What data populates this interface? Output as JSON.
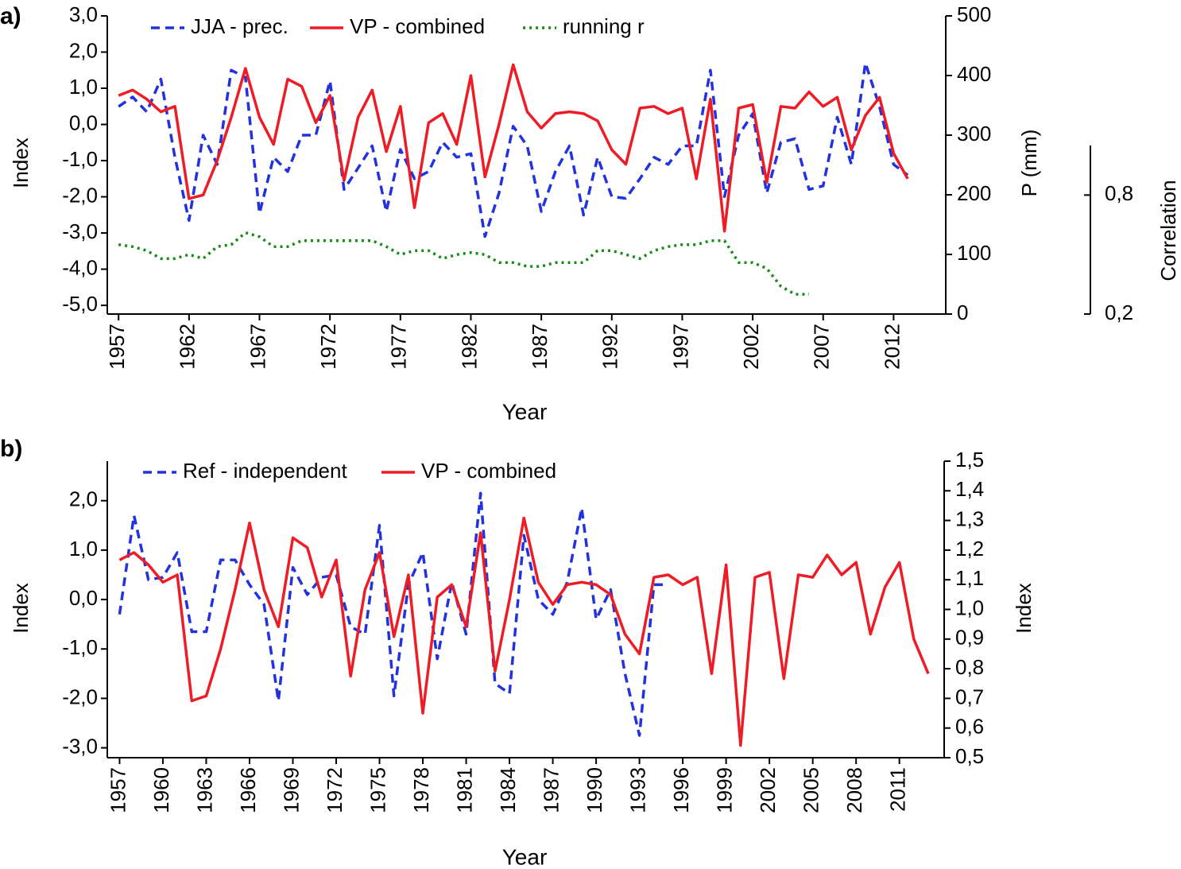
{
  "chart_data": [
    {
      "type": "line",
      "label": "a)",
      "x_label": "Year",
      "y_label": "Index",
      "y2_label": "P (mm)",
      "y3_label": "Correlation",
      "x": [
        1957,
        1958,
        1959,
        1960,
        1961,
        1962,
        1963,
        1964,
        1965,
        1966,
        1967,
        1968,
        1969,
        1970,
        1971,
        1972,
        1973,
        1974,
        1975,
        1976,
        1977,
        1978,
        1979,
        1980,
        1981,
        1982,
        1983,
        1984,
        1985,
        1986,
        1987,
        1988,
        1989,
        1990,
        1991,
        1992,
        1993,
        1994,
        1995,
        1996,
        1997,
        1998,
        1999,
        2000,
        2001,
        2002,
        2003,
        2004,
        2005,
        2006,
        2007,
        2008,
        2009,
        2010,
        2011,
        2012,
        2013
      ],
      "xlim": [
        1956.2,
        2015.7
      ],
      "xticks": [
        1957,
        1962,
        1967,
        1972,
        1977,
        1982,
        1987,
        1992,
        1997,
        2002,
        2007,
        2012
      ],
      "ylim": [
        -5.24,
        3.0
      ],
      "yticks": [
        {
          "value": 3,
          "label": "3,0"
        },
        {
          "value": 2,
          "label": "2,0"
        },
        {
          "value": 1,
          "label": "1,0"
        },
        {
          "value": 0,
          "label": "0,0"
        },
        {
          "value": -1,
          "label": "-1,0"
        },
        {
          "value": -2,
          "label": "-2,0"
        },
        {
          "value": -3,
          "label": "-3,0"
        },
        {
          "value": -4,
          "label": "-4,0"
        },
        {
          "value": -5,
          "label": "-5,0"
        }
      ],
      "y2lim": [
        0,
        500
      ],
      "y2ticks": [
        0,
        100,
        200,
        300,
        400,
        500
      ],
      "y3lim": [
        0.2,
        1.05
      ],
      "y3ticks": [
        {
          "value": 0.8,
          "label": "0,8"
        },
        {
          "value": 0.2,
          "label": "0,2"
        }
      ],
      "series": [
        {
          "name": "JJA - prec.",
          "color": "#2233dd",
          "dash": "dashed",
          "axis": "y2",
          "values": [
            348,
            364,
            339,
            394,
            263,
            157,
            300,
            251,
            409,
            397,
            169,
            263,
            239,
            300,
            300,
            391,
            209,
            245,
            282,
            172,
            276,
            227,
            239,
            288,
            263,
            269,
            130,
            203,
            315,
            282,
            172,
            239,
            282,
            166,
            263,
            197,
            194,
            227,
            263,
            251,
            282,
            282,
            409,
            197,
            300,
            336,
            203,
            288,
            294,
            209,
            215,
            330,
            251,
            421,
            348,
            251,
            233
          ]
        },
        {
          "name": "VP - combined",
          "color": "#ee1c25",
          "dash": "solid",
          "axis": "y",
          "values": [
            0.8,
            0.95,
            0.7,
            0.35,
            0.5,
            -2.05,
            -1.95,
            -1.0,
            0.2,
            1.55,
            0.2,
            -0.55,
            1.25,
            1.05,
            0.05,
            0.8,
            -1.55,
            0.2,
            0.95,
            -0.75,
            0.5,
            -2.3,
            0.05,
            0.3,
            -0.55,
            1.35,
            -1.45,
            0.0,
            1.65,
            0.35,
            -0.1,
            0.3,
            0.35,
            0.3,
            0.1,
            -0.7,
            -1.1,
            0.45,
            0.5,
            0.3,
            0.45,
            -1.5,
            0.7,
            -2.95,
            0.45,
            0.55,
            -1.6,
            0.5,
            0.45,
            0.9,
            0.5,
            0.75,
            -0.7,
            0.25,
            0.75,
            -0.8,
            -1.5
          ]
        },
        {
          "name": "running r",
          "color": "#1a8a1a",
          "dash": "dotted",
          "axis": "y3",
          "values": [
            0.55,
            0.54,
            0.52,
            0.48,
            0.48,
            0.5,
            0.48,
            0.54,
            0.55,
            0.61,
            0.59,
            0.54,
            0.54,
            0.57,
            0.57,
            0.57,
            0.57,
            0.57,
            0.57,
            0.54,
            0.5,
            0.52,
            0.52,
            0.48,
            0.5,
            0.51,
            0.5,
            0.46,
            0.46,
            0.44,
            0.44,
            0.46,
            0.46,
            0.46,
            0.52,
            0.52,
            0.5,
            0.48,
            0.52,
            0.54,
            0.55,
            0.55,
            0.57,
            0.57,
            0.46,
            0.46,
            0.43,
            0.34,
            0.3,
            0.3,
            null,
            null,
            null,
            null,
            null,
            null,
            null
          ]
        }
      ]
    },
    {
      "type": "line",
      "label": "b)",
      "x_label": "Year",
      "y_label": "Index",
      "y2_label": "Index",
      "x": [
        1957,
        1958,
        1959,
        1960,
        1961,
        1962,
        1963,
        1964,
        1965,
        1966,
        1967,
        1968,
        1969,
        1970,
        1971,
        1972,
        1973,
        1974,
        1975,
        1976,
        1977,
        1978,
        1979,
        1980,
        1981,
        1982,
        1983,
        1984,
        1985,
        1986,
        1987,
        1988,
        1989,
        1990,
        1991,
        1992,
        1993,
        1994,
        1995,
        1996,
        1997,
        1998,
        1999,
        2000,
        2001,
        2002,
        2003,
        2004,
        2005,
        2006,
        2007,
        2008,
        2009,
        2010,
        2011,
        2012,
        2013
      ],
      "xlim": [
        1956.15,
        2014.1
      ],
      "xticks": [
        1957,
        1960,
        1963,
        1966,
        1969,
        1972,
        1975,
        1978,
        1981,
        1984,
        1987,
        1990,
        1993,
        1996,
        1999,
        2002,
        2005,
        2008,
        2011
      ],
      "ylim": [
        -3.2,
        2.8
      ],
      "yticks": [
        {
          "value": 2,
          "label": "2,0"
        },
        {
          "value": 1,
          "label": "1,0"
        },
        {
          "value": 0,
          "label": "0,0"
        },
        {
          "value": -1,
          "label": "-1,0"
        },
        {
          "value": -2,
          "label": "-2,0"
        },
        {
          "value": -3,
          "label": "-3,0"
        }
      ],
      "y2lim": [
        0.5,
        1.5
      ],
      "y2ticks": [
        {
          "value": 1.5,
          "label": "1,5"
        },
        {
          "value": 1.4,
          "label": "1,4"
        },
        {
          "value": 1.3,
          "label": "1,3"
        },
        {
          "value": 1.2,
          "label": "1,2"
        },
        {
          "value": 1.1,
          "label": "1,1"
        },
        {
          "value": 1.0,
          "label": "1,0"
        },
        {
          "value": 0.9,
          "label": "0,9"
        },
        {
          "value": 0.8,
          "label": "0,8"
        },
        {
          "value": 0.7,
          "label": "0,7"
        },
        {
          "value": 0.6,
          "label": "0,6"
        },
        {
          "value": 0.5,
          "label": "0,5"
        }
      ],
      "series": [
        {
          "name": "Ref - independent",
          "color": "#2233dd",
          "dash": "dashed",
          "axis": "y",
          "values": [
            -0.3,
            1.7,
            0.4,
            0.45,
            0.95,
            -0.65,
            -0.65,
            0.8,
            0.8,
            0.3,
            -0.1,
            -2.05,
            0.65,
            0.1,
            0.45,
            0.5,
            -0.55,
            -0.7,
            1.5,
            -1.95,
            0.3,
            0.95,
            -1.2,
            0.35,
            -0.7,
            2.15,
            -1.7,
            -1.9,
            1.3,
            0.0,
            -0.3,
            0.35,
            1.85,
            -0.4,
            0.2,
            -1.5,
            -2.75,
            0.3,
            0.3,
            null,
            null,
            null,
            null,
            null,
            null,
            null,
            null,
            null,
            null,
            null,
            null,
            null,
            null,
            null,
            null,
            null,
            null
          ]
        },
        {
          "name": "VP - combined",
          "color": "#ee1c25",
          "dash": "solid",
          "axis": "y",
          "values": [
            0.8,
            0.95,
            0.7,
            0.35,
            0.5,
            -2.05,
            -1.95,
            -1.0,
            0.2,
            1.55,
            0.2,
            -0.55,
            1.25,
            1.05,
            0.05,
            0.8,
            -1.55,
            0.2,
            0.95,
            -0.75,
            0.5,
            -2.3,
            0.05,
            0.3,
            -0.55,
            1.35,
            -1.45,
            0.0,
            1.65,
            0.35,
            -0.1,
            0.3,
            0.35,
            0.3,
            0.1,
            -0.7,
            -1.1,
            0.45,
            0.5,
            0.3,
            0.45,
            -1.5,
            0.7,
            -2.95,
            0.45,
            0.55,
            -1.6,
            0.5,
            0.45,
            0.9,
            0.5,
            0.75,
            -0.7,
            0.25,
            0.75,
            -0.8,
            -1.5
          ]
        }
      ]
    }
  ]
}
